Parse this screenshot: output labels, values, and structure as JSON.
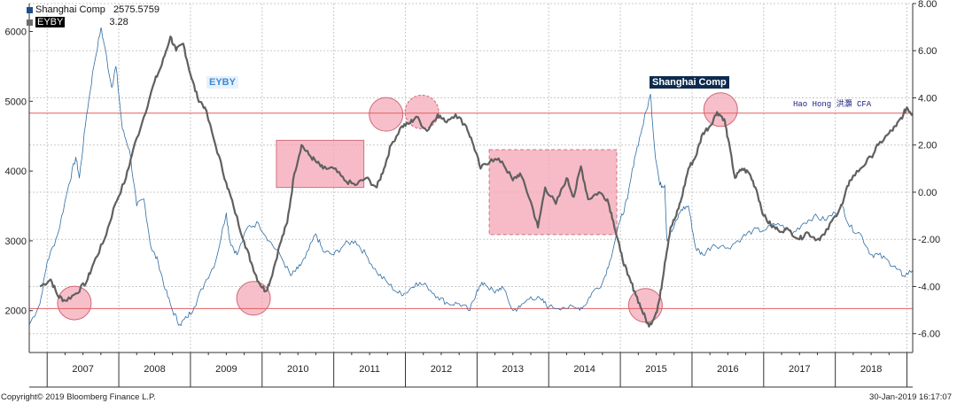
{
  "legend": {
    "items": [
      {
        "name": "Shanghai Comp",
        "value": "2575.5759",
        "color": "#1f4e8c"
      },
      {
        "name": "EYBY",
        "value": "3.28",
        "color": "#6d6d6d"
      }
    ]
  },
  "footer": {
    "copyright": "Copyright© 2019 Bloomberg Finance L.P.",
    "timestamp": "30-Jan-2019 16:17:07"
  },
  "author_note": "Hao Hong 洪灝 CFA",
  "colors": {
    "shanghai_line": "#2f6da3",
    "eyby_line": "#606060",
    "reference_line": "#e06060",
    "highlight_fill": "#f4a4b4",
    "grid": "#c9c9c9"
  },
  "chart_data": {
    "type": "line",
    "x_axis": {
      "categories": [
        "2007",
        "2008",
        "2009",
        "2010",
        "2011",
        "2012",
        "2013",
        "2014",
        "2015",
        "2016",
        "2017",
        "2018"
      ],
      "start_year": 2006.75,
      "end_year": 2019.08
    },
    "left_axis": {
      "ylim": [
        1400,
        6400
      ],
      "ticks": [
        2000,
        3000,
        4000,
        5000,
        6000
      ],
      "tick_labels": [
        "2000",
        "3000",
        "4000",
        "5000",
        "6000"
      ]
    },
    "right_axis": {
      "ylim": [
        -6.8,
        8.0
      ],
      "ticks": [
        -6,
        -4,
        -2,
        0,
        2,
        4,
        6,
        8
      ],
      "tick_labels": [
        "-6.00",
        "-4.00",
        "-2.00",
        "0.00",
        "2.00",
        "4.00",
        "6.00",
        "8.00"
      ]
    },
    "series": [
      {
        "name": "Shanghai Comp",
        "axis": "left",
        "points": [
          [
            2006.75,
            1800
          ],
          [
            2006.9,
            2100
          ],
          [
            2007.0,
            2700
          ],
          [
            2007.15,
            3100
          ],
          [
            2007.3,
            3800
          ],
          [
            2007.4,
            4200
          ],
          [
            2007.45,
            3900
          ],
          [
            2007.55,
            4800
          ],
          [
            2007.65,
            5500
          ],
          [
            2007.75,
            6050
          ],
          [
            2007.8,
            5800
          ],
          [
            2007.9,
            5200
          ],
          [
            2007.96,
            5500
          ],
          [
            2008.05,
            4600
          ],
          [
            2008.15,
            4300
          ],
          [
            2008.25,
            3500
          ],
          [
            2008.35,
            3600
          ],
          [
            2008.45,
            2900
          ],
          [
            2008.55,
            2700
          ],
          [
            2008.65,
            2300
          ],
          [
            2008.75,
            2000
          ],
          [
            2008.85,
            1800
          ],
          [
            2008.95,
            1900
          ],
          [
            2009.05,
            2050
          ],
          [
            2009.2,
            2400
          ],
          [
            2009.35,
            2700
          ],
          [
            2009.5,
            3400
          ],
          [
            2009.55,
            3000
          ],
          [
            2009.65,
            2800
          ],
          [
            2009.8,
            3200
          ],
          [
            2009.95,
            3250
          ],
          [
            2010.1,
            3000
          ],
          [
            2010.25,
            2800
          ],
          [
            2010.4,
            2500
          ],
          [
            2010.5,
            2600
          ],
          [
            2010.6,
            2750
          ],
          [
            2010.75,
            3100
          ],
          [
            2010.85,
            2850
          ],
          [
            2011.0,
            2800
          ],
          [
            2011.15,
            2950
          ],
          [
            2011.3,
            3000
          ],
          [
            2011.45,
            2800
          ],
          [
            2011.6,
            2550
          ],
          [
            2011.75,
            2400
          ],
          [
            2011.9,
            2250
          ],
          [
            2012.0,
            2250
          ],
          [
            2012.15,
            2400
          ],
          [
            2012.3,
            2350
          ],
          [
            2012.45,
            2200
          ],
          [
            2012.6,
            2100
          ],
          [
            2012.75,
            2100
          ],
          [
            2012.9,
            2000
          ],
          [
            2013.0,
            2300
          ],
          [
            2013.1,
            2400
          ],
          [
            2013.25,
            2250
          ],
          [
            2013.35,
            2350
          ],
          [
            2013.5,
            2000
          ],
          [
            2013.6,
            2050
          ],
          [
            2013.75,
            2200
          ],
          [
            2013.9,
            2150
          ],
          [
            2014.0,
            2050
          ],
          [
            2014.2,
            2050
          ],
          [
            2014.4,
            2030
          ],
          [
            2014.5,
            2070
          ],
          [
            2014.6,
            2250
          ],
          [
            2014.75,
            2400
          ],
          [
            2014.85,
            2700
          ],
          [
            2015.0,
            3300
          ],
          [
            2015.1,
            3600
          ],
          [
            2015.2,
            4200
          ],
          [
            2015.3,
            4600
          ],
          [
            2015.42,
            5100
          ],
          [
            2015.48,
            4300
          ],
          [
            2015.55,
            3800
          ],
          [
            2015.62,
            3800
          ],
          [
            2015.65,
            3000
          ],
          [
            2015.75,
            3200
          ],
          [
            2015.85,
            3450
          ],
          [
            2015.95,
            3500
          ],
          [
            2016.05,
            2900
          ],
          [
            2016.15,
            2800
          ],
          [
            2016.3,
            2950
          ],
          [
            2016.5,
            2900
          ],
          [
            2016.7,
            3050
          ],
          [
            2016.85,
            3150
          ],
          [
            2017.0,
            3150
          ],
          [
            2017.2,
            3250
          ],
          [
            2017.4,
            3100
          ],
          [
            2017.55,
            3250
          ],
          [
            2017.7,
            3350
          ],
          [
            2017.85,
            3300
          ],
          [
            2018.0,
            3400
          ],
          [
            2018.1,
            3500
          ],
          [
            2018.2,
            3200
          ],
          [
            2018.35,
            3100
          ],
          [
            2018.5,
            2800
          ],
          [
            2018.6,
            2800
          ],
          [
            2018.75,
            2700
          ],
          [
            2018.85,
            2600
          ],
          [
            2018.95,
            2500
          ],
          [
            2019.08,
            2575
          ]
        ]
      },
      {
        "name": "EYBY",
        "axis": "right",
        "points": [
          [
            2006.9,
            -4.0
          ],
          [
            2007.05,
            -3.7
          ],
          [
            2007.15,
            -4.4
          ],
          [
            2007.25,
            -4.6
          ],
          [
            2007.4,
            -4.3
          ],
          [
            2007.55,
            -3.8
          ],
          [
            2007.65,
            -3.0
          ],
          [
            2007.8,
            -2.0
          ],
          [
            2007.95,
            -0.5
          ],
          [
            2008.1,
            0.6
          ],
          [
            2008.2,
            1.8
          ],
          [
            2008.35,
            3.2
          ],
          [
            2008.5,
            4.7
          ],
          [
            2008.6,
            5.4
          ],
          [
            2008.72,
            6.6
          ],
          [
            2008.8,
            6.0
          ],
          [
            2008.9,
            6.3
          ],
          [
            2009.0,
            5.0
          ],
          [
            2009.1,
            4.0
          ],
          [
            2009.2,
            3.6
          ],
          [
            2009.35,
            2.0
          ],
          [
            2009.5,
            0.4
          ],
          [
            2009.6,
            -0.6
          ],
          [
            2009.75,
            -2.1
          ],
          [
            2009.85,
            -3.0
          ],
          [
            2009.95,
            -3.8
          ],
          [
            2010.05,
            -4.2
          ],
          [
            2010.12,
            -3.7
          ],
          [
            2010.25,
            -2.2
          ],
          [
            2010.35,
            -1.3
          ],
          [
            2010.45,
            0.8
          ],
          [
            2010.55,
            2.0
          ],
          [
            2010.65,
            1.6
          ],
          [
            2010.75,
            1.3
          ],
          [
            2010.85,
            1.0
          ],
          [
            2011.0,
            1.0
          ],
          [
            2011.15,
            0.5
          ],
          [
            2011.3,
            0.3
          ],
          [
            2011.45,
            0.6
          ],
          [
            2011.6,
            0.2
          ],
          [
            2011.7,
            1.0
          ],
          [
            2011.8,
            2.0
          ],
          [
            2011.95,
            2.8
          ],
          [
            2012.05,
            2.9
          ],
          [
            2012.15,
            3.2
          ],
          [
            2012.3,
            2.6
          ],
          [
            2012.45,
            3.3
          ],
          [
            2012.55,
            3.0
          ],
          [
            2012.7,
            3.3
          ],
          [
            2012.85,
            2.8
          ],
          [
            2012.95,
            2.0
          ],
          [
            2013.05,
            1.0
          ],
          [
            2013.2,
            1.4
          ],
          [
            2013.35,
            1.3
          ],
          [
            2013.5,
            0.5
          ],
          [
            2013.6,
            0.8
          ],
          [
            2013.75,
            -0.4
          ],
          [
            2013.85,
            -1.5
          ],
          [
            2013.95,
            0.2
          ],
          [
            2014.1,
            -0.5
          ],
          [
            2014.25,
            0.6
          ],
          [
            2014.35,
            -0.2
          ],
          [
            2014.45,
            1.1
          ],
          [
            2014.55,
            -0.3
          ],
          [
            2014.7,
            0.0
          ],
          [
            2014.82,
            -0.3
          ],
          [
            2014.9,
            -1.2
          ],
          [
            2015.0,
            -2.5
          ],
          [
            2015.1,
            -3.5
          ],
          [
            2015.2,
            -4.2
          ],
          [
            2015.3,
            -5.0
          ],
          [
            2015.4,
            -5.7
          ],
          [
            2015.5,
            -5.1
          ],
          [
            2015.55,
            -4.5
          ],
          [
            2015.62,
            -3.0
          ],
          [
            2015.7,
            -1.5
          ],
          [
            2015.78,
            -1.0
          ],
          [
            2015.85,
            -0.3
          ],
          [
            2015.95,
            1.0
          ],
          [
            2016.05,
            1.5
          ],
          [
            2016.15,
            2.5
          ],
          [
            2016.25,
            2.8
          ],
          [
            2016.35,
            3.4
          ],
          [
            2016.45,
            3.1
          ],
          [
            2016.5,
            2.3
          ],
          [
            2016.6,
            0.6
          ],
          [
            2016.7,
            1.0
          ],
          [
            2016.8,
            0.8
          ],
          [
            2016.9,
            0.1
          ],
          [
            2017.0,
            -1.0
          ],
          [
            2017.1,
            -1.4
          ],
          [
            2017.2,
            -1.6
          ],
          [
            2017.35,
            -1.6
          ],
          [
            2017.5,
            -2.0
          ],
          [
            2017.6,
            -1.7
          ],
          [
            2017.75,
            -2.0
          ],
          [
            2017.85,
            -1.8
          ],
          [
            2018.0,
            -1.0
          ],
          [
            2018.1,
            -0.5
          ],
          [
            2018.2,
            0.5
          ],
          [
            2018.35,
            1.0
          ],
          [
            2018.5,
            1.5
          ],
          [
            2018.6,
            2.0
          ],
          [
            2018.75,
            2.5
          ],
          [
            2018.85,
            2.8
          ],
          [
            2018.95,
            3.3
          ],
          [
            2019.0,
            3.6
          ],
          [
            2019.08,
            3.28
          ]
        ]
      }
    ],
    "reference_lines": [
      {
        "axis": "left",
        "value": 4830
      },
      {
        "axis": "left",
        "value": 2030
      }
    ],
    "highlight_circles": [
      {
        "x": 2007.38,
        "y_right": -4.7
      },
      {
        "x": 2009.88,
        "y_right": -4.5
      },
      {
        "x": 2011.73,
        "y_right": 3.3
      },
      {
        "x": 2012.23,
        "y_right": 3.4
      },
      {
        "x": 2015.35,
        "y_right": -4.8
      },
      {
        "x": 2016.4,
        "y_right": 3.5
      }
    ],
    "highlight_boxes": [
      {
        "x0": 2010.2,
        "x1": 2011.42,
        "y0_right": 0.2,
        "y1_right": 2.2,
        "dashed": false
      },
      {
        "x0": 2013.17,
        "x1": 2014.95,
        "y0_right": -1.8,
        "y1_right": 1.8,
        "dashed": true
      }
    ],
    "annotations": [
      {
        "text": "EYBY",
        "series": "EYBY"
      },
      {
        "text": "Shanghai Comp",
        "series": "Shanghai Comp"
      }
    ],
    "grid": true
  }
}
